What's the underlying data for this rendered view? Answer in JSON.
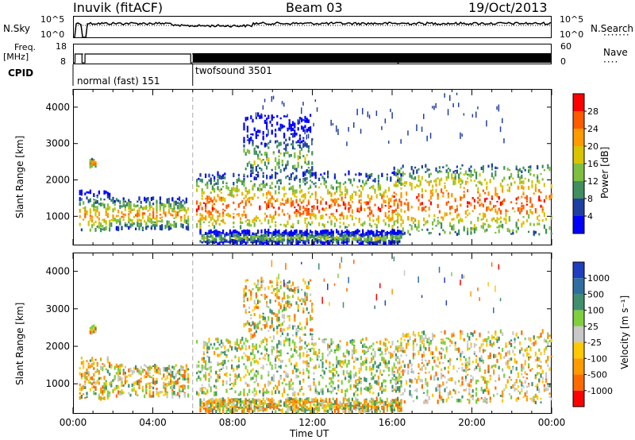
{
  "header": {
    "station": "Inuvik (fitACF)",
    "beam": "Beam 03",
    "date": "19/Oct/2013"
  },
  "strips": {
    "nsky_label": "N.Sky",
    "nsky_ticks": [
      "10^5",
      "10^0"
    ],
    "nsearch_label": "N.Search",
    "nsearch_ticks": [
      "10^5",
      "10^0"
    ],
    "freq_label": "Freq.",
    "freq_unit": "[MHz]",
    "freq_ticks": [
      "18",
      "8"
    ],
    "nave_label": "Nave",
    "nave_ticks": [
      "60",
      "0"
    ],
    "cpid_label": "CPID",
    "cpid_segments": [
      {
        "name": "normal (fast) 151",
        "start": 0,
        "end": 6
      },
      {
        "name": "twofsound 3501",
        "start": 6,
        "end": 24
      }
    ]
  },
  "chart_data": [
    {
      "type": "heatmap",
      "name": "power",
      "ylabel": "Slant Range [km]",
      "yticks": [
        1000,
        2000,
        3000,
        4000
      ],
      "ylim": [
        200,
        4500
      ],
      "xlim": [
        0,
        24
      ],
      "colorbar": {
        "label": "Power [dB]",
        "ticks": [
          "28",
          "24",
          "20",
          "16",
          "12",
          "8",
          "4"
        ],
        "colors": [
          "#ff0000",
          "#ff5a00",
          "#ff9a00",
          "#d8c400",
          "#7fbf3f",
          "#3f8f5f",
          "#1f3fa0",
          "#0000ff"
        ]
      }
    },
    {
      "type": "heatmap",
      "name": "velocity",
      "ylabel": "Slant Range [km]",
      "yticks": [
        1000,
        2000,
        3000,
        4000
      ],
      "ylim": [
        200,
        4500
      ],
      "xlim": [
        0,
        24
      ],
      "xticks": [
        "00:00",
        "04:00",
        "08:00",
        "12:00",
        "16:00",
        "20:00",
        "00:00"
      ],
      "xlabel": "Time UT",
      "colorbar": {
        "label": "Velocity [m s⁻¹]",
        "ticks": [
          "1000",
          "500",
          "100",
          "25",
          "-25",
          "-100",
          "-500",
          "-1000"
        ],
        "colors": [
          "#1f3fbf",
          "#2f6fa0",
          "#3f8f6f",
          "#7fcf3f",
          "#c8c8c8",
          "#ffc800",
          "#ff9a00",
          "#ff6a00",
          "#ff0000"
        ]
      }
    }
  ]
}
